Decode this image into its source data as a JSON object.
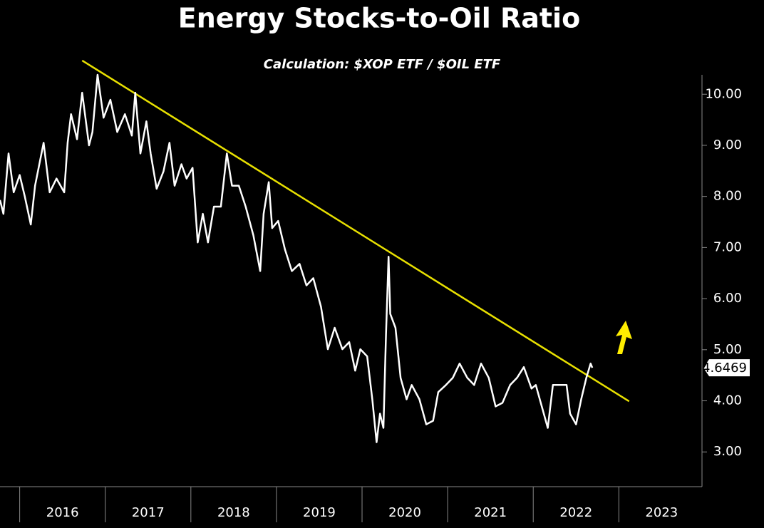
{
  "chart_data": {
    "type": "line",
    "title": "Energy Stocks-to-Oil Ratio",
    "subtitle": "Calculation: $XOP ETF / $OIL ETF",
    "x": [
      2015.77,
      2015.81,
      2015.87,
      2015.93,
      2016.0,
      2016.06,
      2016.13,
      2016.18,
      2016.28,
      2016.35,
      2016.43,
      2016.52,
      2016.56,
      2016.6,
      2016.67,
      2016.73,
      2016.81,
      2016.85,
      2016.91,
      2016.98,
      2017.06,
      2017.14,
      2017.23,
      2017.31,
      2017.35,
      2017.41,
      2017.48,
      2017.53,
      2017.6,
      2017.68,
      2017.75,
      2017.81,
      2017.89,
      2017.95,
      2018.02,
      2018.08,
      2018.14,
      2018.2,
      2018.27,
      2018.35,
      2018.42,
      2018.48,
      2018.56,
      2018.64,
      2018.73,
      2018.81,
      2018.85,
      2018.91,
      2018.95,
      2019.02,
      2019.1,
      2019.18,
      2019.27,
      2019.35,
      2019.43,
      2019.52,
      2019.6,
      2019.68,
      2019.77,
      2019.85,
      2019.92,
      2019.98,
      2020.06,
      2020.12,
      2020.17,
      2020.21,
      2020.25,
      2020.28,
      2020.31,
      2020.33,
      2020.39,
      2020.45,
      2020.52,
      2020.58,
      2020.67,
      2020.75,
      2020.83,
      2020.89,
      2020.98,
      2021.06,
      2021.14,
      2021.23,
      2021.31,
      2021.39,
      2021.48,
      2021.56,
      2021.64,
      2021.73,
      2021.81,
      2021.89,
      2021.98,
      2022.03,
      2022.1,
      2022.17,
      2022.23,
      2022.31,
      2022.39,
      2022.43,
      2022.5,
      2022.56,
      2022.62,
      2022.67,
      2022.69
    ],
    "series": [
      {
        "color": "#ffffff",
        "values": [
          7.93,
          7.66,
          8.84,
          8.08,
          8.42,
          8.0,
          7.45,
          8.21,
          9.05,
          8.08,
          8.35,
          8.08,
          9.05,
          9.61,
          9.12,
          10.03,
          9.0,
          9.26,
          10.38,
          9.54,
          9.89,
          9.26,
          9.61,
          9.19,
          10.03,
          8.84,
          9.47,
          8.84,
          8.15,
          8.49,
          9.05,
          8.21,
          8.63,
          8.35,
          8.56,
          7.1,
          7.66,
          7.1,
          7.8,
          7.8,
          8.84,
          8.21,
          8.21,
          7.8,
          7.24,
          6.54,
          7.66,
          8.28,
          7.38,
          7.52,
          6.96,
          6.54,
          6.68,
          6.26,
          6.4,
          5.84,
          5.01,
          5.43,
          5.01,
          5.15,
          4.59,
          5.01,
          4.87,
          4.03,
          3.19,
          3.75,
          3.47,
          5.29,
          6.82,
          5.7,
          5.43,
          4.45,
          4.03,
          4.31,
          4.03,
          3.54,
          3.61,
          4.17,
          4.31,
          4.45,
          4.73,
          4.45,
          4.31,
          4.73,
          4.45,
          3.89,
          3.96,
          4.31,
          4.45,
          4.66,
          4.24,
          4.31,
          3.89,
          3.47,
          4.31,
          4.31,
          4.31,
          3.75,
          3.54,
          4.03,
          4.45,
          4.73,
          4.6469
        ]
      }
    ],
    "last_value_label": "4.6469",
    "trendline": {
      "color": "#e8e000",
      "x": [
        2016.73,
        2023.12
      ],
      "values": [
        10.66,
        3.99
      ]
    },
    "xlim": [
      2015.77,
      2023.93
    ],
    "xticks": [
      {
        "value": 2016.5,
        "label": "2016"
      },
      {
        "value": 2017.5,
        "label": "2017"
      },
      {
        "value": 2018.5,
        "label": "2018"
      },
      {
        "value": 2019.5,
        "label": "2019"
      },
      {
        "value": 2020.5,
        "label": "2020"
      },
      {
        "value": 2021.5,
        "label": "2021"
      },
      {
        "value": 2022.5,
        "label": "2022"
      },
      {
        "value": 2023.5,
        "label": "2023"
      }
    ],
    "ylim": [
      2.32,
      10.38
    ],
    "yticks": [
      {
        "value": 3,
        "label": "3.00"
      },
      {
        "value": 4,
        "label": "4.00"
      },
      {
        "value": 5,
        "label": "5.00"
      },
      {
        "value": 6,
        "label": "6.00"
      },
      {
        "value": 7,
        "label": "7.00"
      },
      {
        "value": 8,
        "label": "8.00"
      },
      {
        "value": 9,
        "label": "9.00"
      },
      {
        "value": 10,
        "label": "10.00"
      }
    ]
  }
}
